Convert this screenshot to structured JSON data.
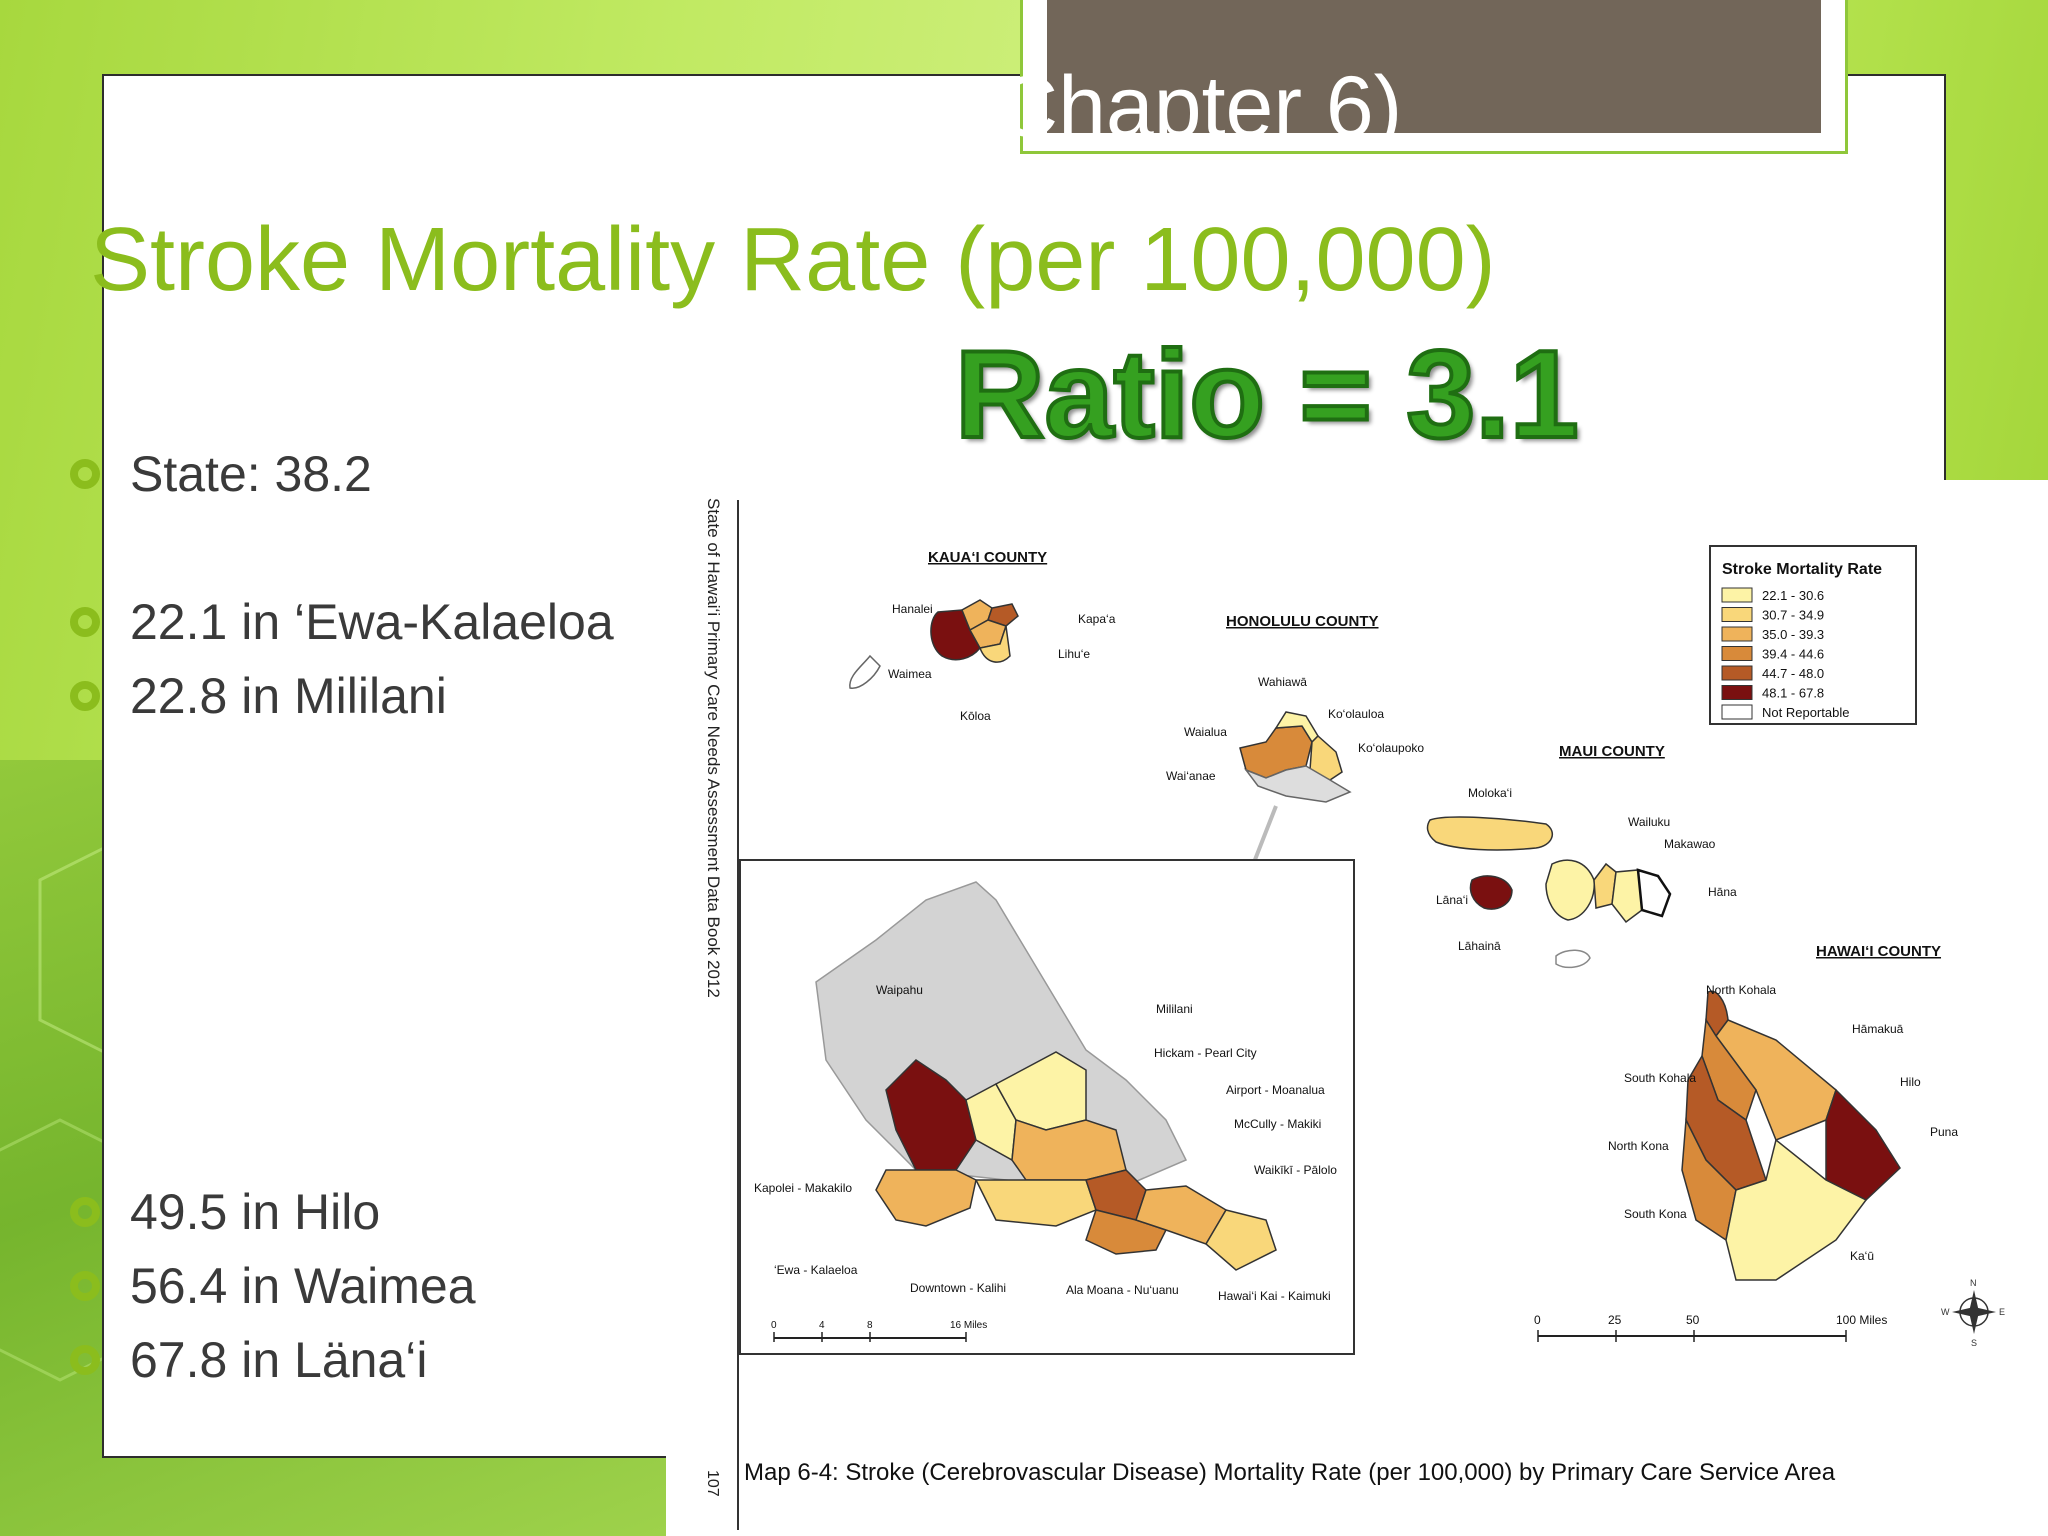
{
  "slide": {
    "chapter_label": "Chapter 6)",
    "title": "Stroke Mortality Rate (per 100,000)",
    "ratio_label": "Ratio = 3.1",
    "bullets": [
      "State: 38.2",
      "22.1 in ‘Ewa-Kalaeloa",
      "22.8 in Mililani",
      "49.5 in Hilo",
      "56.4 in Waimea",
      "67.8 in Läna‘i"
    ]
  },
  "map": {
    "side_caption": "State of Hawai‘i Primary Care Needs Assessment Data Book 2012",
    "page_number": "107",
    "caption": "Map 6-4: Stroke (Cerebrovascular Disease) Mortality Rate (per 100,000) by Primary Care Service Area",
    "counties": [
      "KAUA‘I COUNTY",
      "HONOLULU COUNTY",
      "MAUI COUNTY",
      "HAWAI‘I COUNTY"
    ],
    "legend": {
      "title": "Stroke Mortality Rate",
      "items": [
        {
          "label": "22.1 - 30.6",
          "color": "#fdf3a6"
        },
        {
          "label": "30.7 - 34.9",
          "color": "#f9d77a"
        },
        {
          "label": "35.0 - 39.3",
          "color": "#efb35b"
        },
        {
          "label": "39.4 - 44.6",
          "color": "#d88a3a"
        },
        {
          "label": "44.7 - 48.0",
          "color": "#b55a26"
        },
        {
          "label": "48.1 - 67.8",
          "color": "#7a1010"
        },
        {
          "label": "Not Reportable",
          "color": "#ffffff"
        }
      ]
    },
    "kauai_labels": [
      "Hanalei",
      "Kapa‘a",
      "Lihu‘e",
      "Waimea",
      "Kōloa"
    ],
    "honolulu_labels": [
      "Wahiawā",
      "Ko‘olauloa",
      "Waialua",
      "Ko‘olaupoko",
      "Wai‘anae"
    ],
    "maui_labels": [
      "Moloka‘i",
      "Wailuku",
      "Makawao",
      "Hāna",
      "Lāna‘i",
      "Lāhainā"
    ],
    "hawaii_labels": [
      "North Kohala",
      "Hāmakuā",
      "South Kohala",
      "Hilo",
      "Puna",
      "North Kona",
      "South Kona",
      "Ka‘ū"
    ],
    "oahu_inset_labels": [
      "Waipahu",
      "Mililani",
      "Hickam - Pearl City",
      "Airport - Moanalua",
      "McCully - Makiki",
      "Waikīkī - Pālolo",
      "Kapolei - Makakilo",
      "‘Ewa - Kalaeloa",
      "Downtown - Kalihi",
      "Ala Moana - Nu‘uanu",
      "Hawai‘i Kai - Kaimuki"
    ],
    "inset_scale_ticks": [
      "0",
      "4",
      "8",
      "16 Miles"
    ],
    "main_scale_ticks": [
      "0",
      "25",
      "50",
      "100 Miles"
    ],
    "compass": [
      "N",
      "E",
      "S",
      "W"
    ]
  },
  "colors": {
    "title_green": "#8bbd1d",
    "ratio_green": "#35a020",
    "tab_brown": "#726659",
    "bullet_text": "#3a3a3a"
  }
}
